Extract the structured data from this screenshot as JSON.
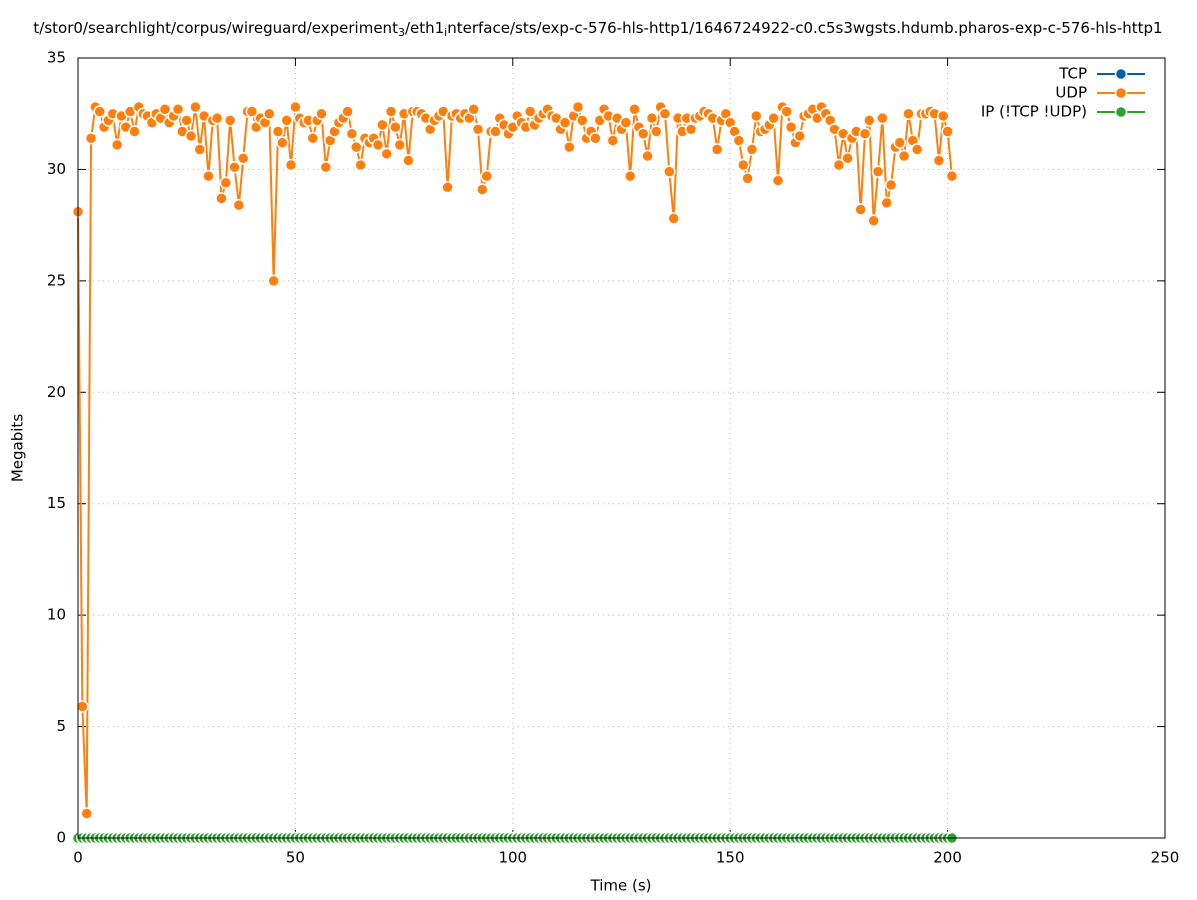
{
  "chart_data": {
    "type": "line",
    "title": [
      "t/stor0/searchlight/corpus/wireguard/experiment",
      "3",
      "/eth1",
      "i",
      "nterface/sts/exp-c-576-hls-http1/1646724922-c0.c5s3wgsts.hdumb.pharos-exp-c-576-hls-http1"
    ],
    "xlabel": "Time (s)",
    "ylabel": "Megabits",
    "xlim": [
      0,
      250
    ],
    "xticks": [
      0,
      50,
      100,
      150,
      200,
      250
    ],
    "ylim": [
      0,
      35
    ],
    "yticks": [
      0,
      5,
      10,
      15,
      20,
      25,
      30,
      35
    ],
    "grid": true,
    "legend": "top-right",
    "x": [
      0,
      1,
      2,
      3,
      4,
      5,
      6,
      7,
      8,
      9,
      10,
      11,
      12,
      13,
      14,
      15,
      16,
      17,
      18,
      19,
      20,
      21,
      22,
      23,
      24,
      25,
      26,
      27,
      28,
      29,
      30,
      31,
      32,
      33,
      34,
      35,
      36,
      37,
      38,
      39,
      40,
      41,
      42,
      43,
      44,
      45,
      46,
      47,
      48,
      49,
      50,
      51,
      52,
      53,
      54,
      55,
      56,
      57,
      58,
      59,
      60,
      61,
      62,
      63,
      64,
      65,
      66,
      67,
      68,
      69,
      70,
      71,
      72,
      73,
      74,
      75,
      76,
      77,
      78,
      79,
      80,
      81,
      82,
      83,
      84,
      85,
      86,
      87,
      88,
      89,
      90,
      91,
      92,
      93,
      94,
      95,
      96,
      97,
      98,
      99,
      100,
      101,
      102,
      103,
      104,
      105,
      106,
      107,
      108,
      109,
      110,
      111,
      112,
      113,
      114,
      115,
      116,
      117,
      118,
      119,
      120,
      121,
      122,
      123,
      124,
      125,
      126,
      127,
      128,
      129,
      130,
      131,
      132,
      133,
      134,
      135,
      136,
      137,
      138,
      139,
      140,
      141,
      142,
      143,
      144,
      145,
      146,
      147,
      148,
      149,
      150,
      151,
      152,
      153,
      154,
      155,
      156,
      157,
      158,
      159,
      160,
      161,
      162,
      163,
      164,
      165,
      166,
      167,
      168,
      169,
      170,
      171,
      172,
      173,
      174,
      175,
      176,
      177,
      178,
      179,
      180,
      181,
      182,
      183,
      184,
      185,
      186,
      187,
      188,
      189,
      190,
      191,
      192,
      193,
      194,
      195,
      196,
      197,
      198,
      199,
      200,
      201
    ],
    "series": [
      {
        "name": "TCP",
        "color": "#0060ad"
      },
      {
        "name": "UDP",
        "color": "#ff7f0e",
        "values": [
          28.1,
          5.9,
          1.1,
          31.4,
          32.8,
          32.6,
          31.9,
          32.2,
          32.5,
          31.1,
          32.4,
          31.9,
          32.6,
          31.7,
          32.8,
          32.5,
          32.4,
          32.1,
          32.5,
          32.3,
          32.7,
          32.1,
          32.4,
          32.7,
          31.7,
          32.2,
          31.5,
          32.8,
          30.9,
          32.4,
          29.7,
          32.2,
          32.3,
          28.7,
          29.4,
          32.2,
          30.1,
          28.4,
          30.5,
          32.6,
          32.6,
          31.9,
          32.3,
          32.1,
          32.5,
          25.0,
          31.7,
          31.2,
          32.2,
          30.2,
          32.8,
          32.3,
          32.1,
          32.2,
          31.4,
          32.2,
          32.5,
          30.1,
          31.3,
          31.7,
          32.1,
          32.3,
          32.6,
          31.6,
          31.0,
          30.2,
          31.4,
          31.2,
          31.4,
          31.1,
          32.0,
          30.7,
          32.6,
          31.9,
          31.1,
          32.5,
          30.4,
          32.6,
          32.6,
          32.5,
          32.3,
          31.8,
          32.2,
          32.4,
          32.6,
          29.2,
          32.4,
          32.5,
          32.3,
          32.5,
          32.3,
          32.7,
          31.8,
          29.1,
          29.7,
          31.7,
          31.7,
          32.3,
          32.0,
          31.6,
          31.9,
          32.4,
          32.1,
          31.9,
          32.6,
          32.0,
          32.3,
          32.5,
          32.7,
          32.4,
          32.3,
          31.8,
          32.1,
          31.0,
          32.4,
          32.8,
          32.2,
          31.4,
          31.7,
          31.4,
          32.2,
          32.7,
          32.4,
          31.3,
          32.3,
          31.8,
          32.1,
          29.7,
          32.7,
          31.9,
          31.6,
          30.6,
          32.3,
          31.7,
          32.8,
          32.5,
          29.9,
          27.8,
          32.3,
          31.7,
          32.3,
          31.8,
          32.3,
          32.4,
          32.6,
          32.5,
          32.3,
          30.9,
          32.2,
          32.5,
          32.1,
          31.7,
          31.3,
          30.2,
          29.6,
          30.9,
          32.4,
          31.7,
          31.8,
          32.0,
          32.3,
          29.5,
          32.8,
          32.6,
          31.9,
          31.2,
          31.5,
          32.4,
          32.5,
          32.7,
          32.3,
          32.8,
          32.5,
          32.2,
          31.8,
          30.2,
          31.6,
          30.5,
          31.4,
          31.7,
          28.2,
          31.6,
          32.2,
          27.7,
          29.9,
          32.3,
          28.5,
          29.3,
          31.0,
          31.2,
          30.6,
          32.5,
          31.3,
          30.9,
          32.5,
          32.5,
          32.6,
          32.5,
          30.4,
          32.4,
          31.7,
          29.7
        ]
      },
      {
        "name": "IP (!TCP  !UDP)",
        "color": "#2ca02c",
        "values": [
          0,
          0,
          0,
          0,
          0,
          0,
          0,
          0,
          0,
          0,
          0,
          0,
          0,
          0,
          0,
          0,
          0,
          0,
          0,
          0,
          0,
          0,
          0,
          0,
          0,
          0,
          0,
          0,
          0,
          0,
          0,
          0,
          0,
          0,
          0,
          0,
          0,
          0,
          0,
          0,
          0,
          0,
          0,
          0,
          0,
          0,
          0,
          0,
          0,
          0,
          0,
          0,
          0,
          0,
          0,
          0,
          0,
          0,
          0,
          0,
          0,
          0,
          0,
          0,
          0,
          0,
          0,
          0,
          0,
          0,
          0,
          0,
          0,
          0,
          0,
          0,
          0,
          0,
          0,
          0,
          0,
          0,
          0,
          0,
          0,
          0,
          0,
          0,
          0,
          0,
          0,
          0,
          0,
          0,
          0,
          0,
          0,
          0,
          0,
          0,
          0,
          0,
          0,
          0,
          0,
          0,
          0,
          0,
          0,
          0,
          0,
          0,
          0,
          0,
          0,
          0,
          0,
          0,
          0,
          0,
          0,
          0,
          0,
          0,
          0,
          0,
          0,
          0,
          0,
          0,
          0,
          0,
          0,
          0,
          0,
          0,
          0,
          0,
          0,
          0,
          0,
          0,
          0,
          0,
          0,
          0,
          0,
          0,
          0,
          0,
          0,
          0,
          0,
          0,
          0,
          0,
          0,
          0,
          0,
          0,
          0,
          0,
          0,
          0,
          0,
          0,
          0,
          0,
          0,
          0,
          0,
          0,
          0,
          0,
          0,
          0,
          0,
          0,
          0,
          0,
          0,
          0,
          0,
          0,
          0,
          0,
          0,
          0,
          0,
          0,
          0,
          0,
          0,
          0,
          0,
          0,
          0,
          0,
          0,
          0,
          0,
          0
        ]
      }
    ]
  }
}
